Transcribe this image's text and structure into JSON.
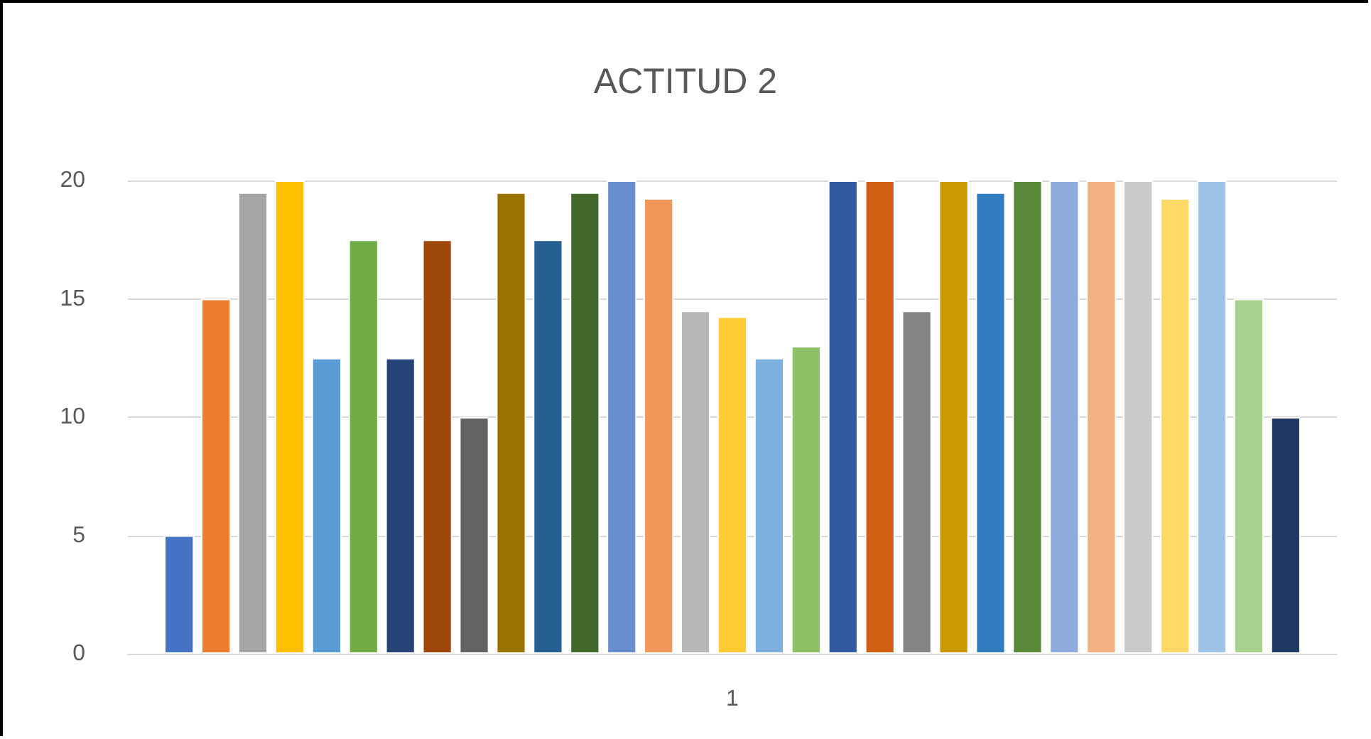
{
  "chart_data": {
    "type": "bar",
    "title": "ACTITUD 2",
    "categories": [
      "1"
    ],
    "ylim": [
      0,
      20
    ],
    "yticks": [
      0,
      5,
      10,
      15,
      20
    ],
    "grid": "y",
    "series": [
      {
        "color": "#4472c4",
        "values": [
          5
        ]
      },
      {
        "color": "#ed7d31",
        "values": [
          15
        ]
      },
      {
        "color": "#a5a5a5",
        "values": [
          19.5
        ]
      },
      {
        "color": "#ffc000",
        "values": [
          20
        ]
      },
      {
        "color": "#5b9bd5",
        "values": [
          12.5
        ]
      },
      {
        "color": "#70ad47",
        "values": [
          17.5
        ]
      },
      {
        "color": "#264478",
        "values": [
          12.5
        ]
      },
      {
        "color": "#9e480e",
        "values": [
          17.5
        ]
      },
      {
        "color": "#636363",
        "values": [
          10
        ]
      },
      {
        "color": "#997300",
        "values": [
          19.5
        ]
      },
      {
        "color": "#255e91",
        "values": [
          17.5
        ]
      },
      {
        "color": "#43682b",
        "values": [
          19.5
        ]
      },
      {
        "color": "#698ed0",
        "values": [
          20
        ]
      },
      {
        "color": "#f1975a",
        "values": [
          19.25
        ]
      },
      {
        "color": "#b7b7b7",
        "values": [
          14.5
        ]
      },
      {
        "color": "#ffcd33",
        "values": [
          14.25
        ]
      },
      {
        "color": "#7cafdd",
        "values": [
          12.5
        ]
      },
      {
        "color": "#8cc168",
        "values": [
          13
        ]
      },
      {
        "color": "#335aa1",
        "values": [
          20
        ]
      },
      {
        "color": "#d26012",
        "values": [
          20
        ]
      },
      {
        "color": "#848484",
        "values": [
          14.5
        ]
      },
      {
        "color": "#cc9a00",
        "values": [
          20
        ]
      },
      {
        "color": "#327dc2",
        "values": [
          19.5
        ]
      },
      {
        "color": "#5a8a39",
        "values": [
          20
        ]
      },
      {
        "color": "#8faadc",
        "values": [
          20
        ]
      },
      {
        "color": "#f4b183",
        "values": [
          20
        ]
      },
      {
        "color": "#c9c9c9",
        "values": [
          20
        ]
      },
      {
        "color": "#ffd966",
        "values": [
          19.25
        ]
      },
      {
        "color": "#9dc3e6",
        "values": [
          20
        ]
      },
      {
        "color": "#a9d18e",
        "values": [
          15
        ]
      },
      {
        "color": "#203864",
        "values": [
          10
        ]
      }
    ]
  }
}
